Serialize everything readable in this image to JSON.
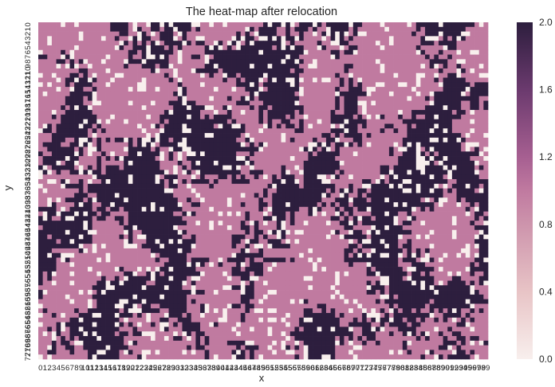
{
  "chart_data": {
    "type": "heatmap",
    "title": "The heat-map after relocation",
    "xlabel": "x",
    "ylabel": "y",
    "n_cols": 100,
    "n_rows": 73,
    "value_range": [
      0,
      2
    ],
    "distinct_values": [
      0,
      1,
      2
    ],
    "row_ticks_top_to_bottom": [
      "0",
      "1",
      "2",
      "3",
      "4",
      "5",
      "6",
      "7",
      "8",
      "9",
      "10",
      "11",
      "12",
      "13",
      "14",
      "15",
      "16",
      "17",
      "18",
      "19",
      "20",
      "21",
      "22",
      "23",
      "24",
      "25",
      "26",
      "27",
      "28",
      "29",
      "30",
      "31",
      "32",
      "33",
      "34",
      "35",
      "36",
      "37",
      "38",
      "39",
      "40",
      "41",
      "42",
      "43",
      "44",
      "45",
      "46",
      "47",
      "48",
      "49",
      "50",
      "51",
      "52",
      "53",
      "54",
      "55",
      "56",
      "57",
      "58",
      "59",
      "60",
      "61",
      "62",
      "63",
      "64",
      "65",
      "66",
      "67",
      "68",
      "69",
      "70",
      "71",
      "72"
    ],
    "col_ticks": [
      "0",
      "1",
      "2",
      "3",
      "4",
      "5",
      "6",
      "7",
      "8",
      "9",
      "10",
      "11",
      "12",
      "13",
      "14",
      "15",
      "16",
      "17",
      "18",
      "19",
      "20",
      "21",
      "22",
      "23",
      "24",
      "25",
      "26",
      "27",
      "28",
      "29",
      "30",
      "31",
      "32",
      "33",
      "34",
      "35",
      "36",
      "37",
      "38",
      "39",
      "40",
      "41",
      "42",
      "43",
      "44",
      "45",
      "46",
      "47",
      "48",
      "49",
      "50",
      "51",
      "52",
      "53",
      "54",
      "55",
      "56",
      "57",
      "58",
      "59",
      "60",
      "61",
      "62",
      "63",
      "64",
      "65",
      "66",
      "67",
      "68",
      "69",
      "70",
      "71",
      "72",
      "73",
      "74",
      "75",
      "76",
      "77",
      "78",
      "79",
      "80",
      "81",
      "82",
      "83",
      "84",
      "85",
      "86",
      "87",
      "88",
      "89",
      "90",
      "91",
      "92",
      "93",
      "94",
      "95",
      "96",
      "97",
      "98",
      "99"
    ],
    "colorbar": {
      "ticks": [
        "0.0",
        "0.4",
        "0.8",
        "1.2",
        "1.6",
        "2.0"
      ],
      "tick_values": [
        0,
        0.4,
        0.8,
        1.2,
        1.6,
        2.0
      ],
      "stops": [
        {
          "value": 0.0,
          "color": "#f8efed"
        },
        {
          "value": 0.4,
          "color": "#e8c4c6"
        },
        {
          "value": 0.8,
          "color": "#cd94ac"
        },
        {
          "value": 1.0,
          "color": "#c07aa0"
        },
        {
          "value": 1.2,
          "color": "#a65f91"
        },
        {
          "value": 1.6,
          "color": "#6b3a6e"
        },
        {
          "value": 2.0,
          "color": "#2d1e3e"
        }
      ]
    },
    "cell_colors": {
      "0": "#f8efed",
      "1": "#c07aa0",
      "2": "#2d1e3e"
    },
    "grid": false
  }
}
